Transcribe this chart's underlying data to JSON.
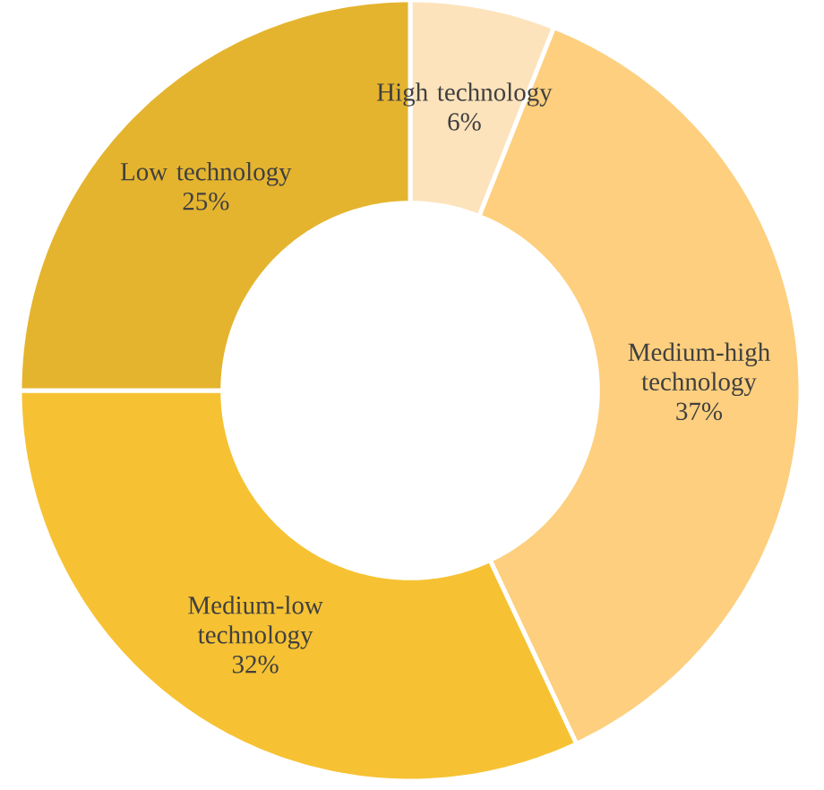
{
  "chart_data": {
    "type": "donut",
    "categories": [
      "High technology",
      "Medium-high technology",
      "Medium-low technology",
      "Low technology"
    ],
    "values": [
      6,
      37,
      32,
      25
    ],
    "value_labels": [
      "6%",
      "37%",
      "32%",
      "25%"
    ],
    "colors": [
      "#fde3bb",
      "#fdcf7e",
      "#f6c233",
      "#e5b42e"
    ]
  }
}
